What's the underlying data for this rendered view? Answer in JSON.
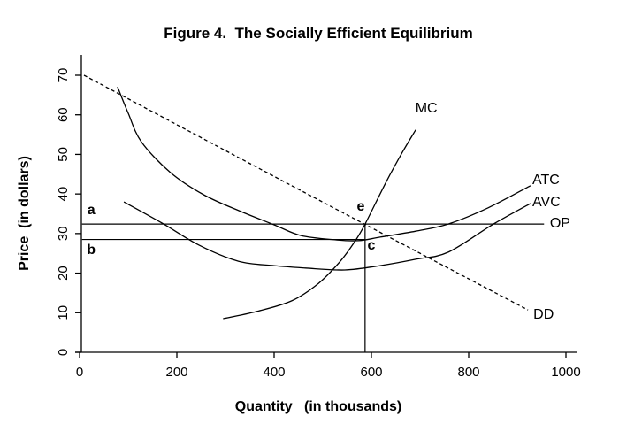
{
  "chart_data": {
    "type": "line",
    "title": "Figure 4.  The Socially Efficient Equilibrium",
    "xlabel": "Quantity   (in thousands)",
    "ylabel": "Price  (in dollars)",
    "xlim": [
      0,
      1000
    ],
    "ylim": [
      0,
      70
    ],
    "xticks": [
      0,
      200,
      400,
      600,
      800,
      1000
    ],
    "yticks": [
      0,
      10,
      20,
      30,
      40,
      50,
      60,
      70
    ],
    "grid": false,
    "line_color": "#000000",
    "series": [
      {
        "name": "DD",
        "style": "dashed",
        "points": [
          [
            9,
            70
          ],
          [
            465,
            40.2
          ],
          [
            922,
            10.7
          ]
        ]
      },
      {
        "name": "MC",
        "style": "solid",
        "points": [
          [
            295,
            8.5
          ],
          [
            364,
            10.3
          ],
          [
            436,
            13.0
          ],
          [
            491,
            17.4
          ],
          [
            536,
            23.0
          ],
          [
            567,
            28.2
          ],
          [
            587,
            32.4
          ],
          [
            631,
            43.2
          ],
          [
            664,
            50.6
          ],
          [
            691,
            56.2
          ]
        ]
      },
      {
        "name": "ATC",
        "style": "solid",
        "points": [
          [
            78,
            67.1
          ],
          [
            100,
            60.4
          ],
          [
            127,
            53.2
          ],
          [
            187,
            45.4
          ],
          [
            255,
            39.8
          ],
          [
            327,
            35.8
          ],
          [
            400,
            32.2
          ],
          [
            455,
            29.5
          ],
          [
            527,
            28.4
          ],
          [
            573,
            28.2
          ],
          [
            618,
            29.1
          ],
          [
            691,
            30.6
          ],
          [
            758,
            32.4
          ],
          [
            840,
            36.5
          ],
          [
            927,
            42.1
          ]
        ]
      },
      {
        "name": "AVC",
        "style": "solid",
        "points": [
          [
            91,
            38.0
          ],
          [
            169,
            32.7
          ],
          [
            245,
            27.1
          ],
          [
            327,
            23.0
          ],
          [
            400,
            21.9
          ],
          [
            464,
            21.3
          ],
          [
            545,
            20.8
          ],
          [
            618,
            21.9
          ],
          [
            691,
            23.5
          ],
          [
            758,
            25.3
          ],
          [
            851,
            32.4
          ],
          [
            927,
            37.6
          ]
        ]
      }
    ],
    "reference_lines": [
      {
        "name": "OP-price-line",
        "type": "horizontal",
        "price": 32.4,
        "q_start": 5,
        "q_end": 955
      },
      {
        "name": "b-price-line",
        "type": "horizontal",
        "price": 28.5,
        "q_start": 5,
        "q_end": 587
      },
      {
        "name": "e-quantity-line",
        "type": "vertical",
        "quantity": 587,
        "p_start": 0,
        "p_end": 32.4
      }
    ],
    "point_labels": [
      {
        "text": "a",
        "q": 24,
        "p": 34.9
      },
      {
        "text": "b",
        "q": 24,
        "p": 24.8
      },
      {
        "text": "e",
        "q": 578,
        "p": 35.8
      },
      {
        "text": "c",
        "q": 600,
        "p": 25.9
      }
    ],
    "curve_labels": [
      {
        "text": "MC",
        "q": 713,
        "p": 61.7,
        "anchor": "middle"
      },
      {
        "text": "ATC",
        "q": 931,
        "p": 43.6,
        "anchor": "start"
      },
      {
        "text": "AVC",
        "q": 931,
        "p": 38.0,
        "anchor": "start"
      },
      {
        "text": "OP",
        "q": 967,
        "p": 32.6,
        "anchor": "start"
      },
      {
        "text": "DD",
        "q": 933,
        "p": 9.6,
        "anchor": "start"
      }
    ]
  }
}
